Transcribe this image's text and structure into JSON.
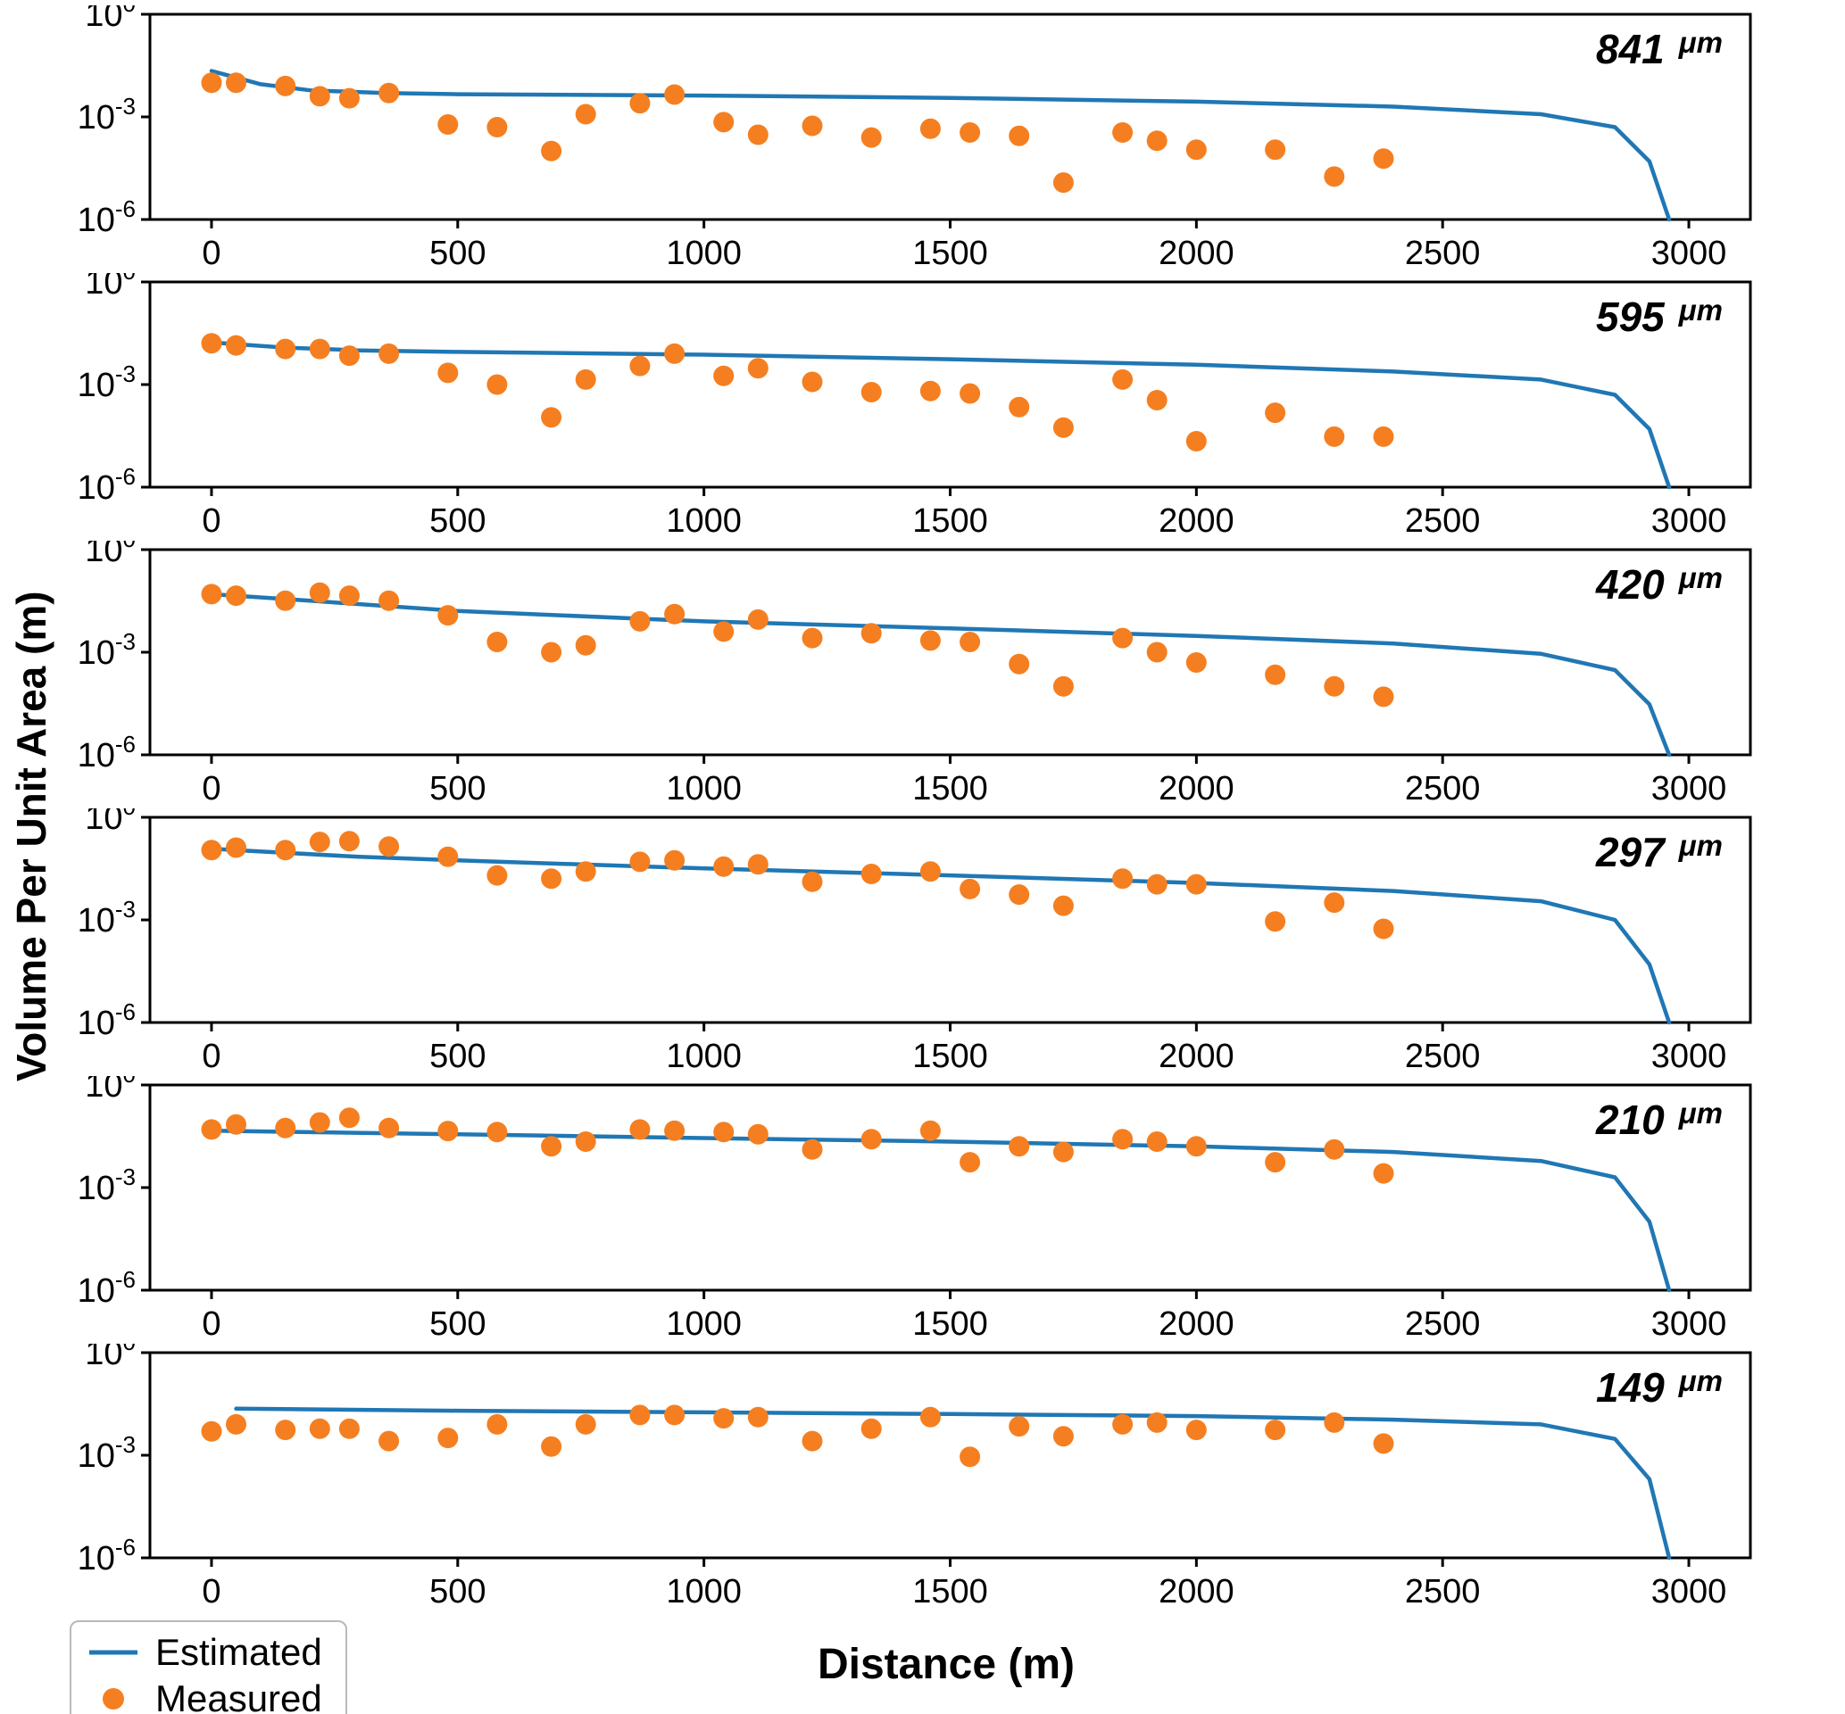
{
  "figure": {
    "ylabel": "Volume Per Unit Area (m)",
    "xlabel": "Distance (m)",
    "legend": {
      "estimated_label": "Estimated",
      "measured_label": "Measured"
    },
    "colors": {
      "estimated": "#2077b4",
      "measured": "#f57f20"
    },
    "axes": {
      "xlim": [
        -125,
        3125
      ],
      "xticks": [
        0,
        500,
        1000,
        1500,
        2000,
        2500,
        3000
      ],
      "yscale": "log",
      "y_exponent_ticks": [
        0,
        -3,
        -6
      ],
      "ylim_exponents": [
        -6,
        0
      ],
      "grid": false
    }
  },
  "chart_data": [
    {
      "type": "line+scatter",
      "label": "841",
      "unit": "μm",
      "series": [
        {
          "name": "Estimated",
          "type": "line",
          "x": [
            0,
            100,
            200,
            350,
            500,
            1000,
            1500,
            2000,
            2400,
            2700,
            2850,
            2920,
            2960
          ],
          "y": [
            0.022,
            0.009,
            0.006,
            0.005,
            0.0046,
            0.0042,
            0.0036,
            0.0028,
            0.002,
            0.0012,
            0.0005,
            5e-05,
            1e-06
          ]
        },
        {
          "name": "Measured",
          "type": "scatter",
          "x": [
            0,
            50,
            150,
            220,
            280,
            360,
            480,
            580,
            690,
            760,
            870,
            940,
            1040,
            1110,
            1220,
            1340,
            1460,
            1540,
            1640,
            1730,
            1850,
            1920,
            2000,
            2160,
            2280,
            2380
          ],
          "y": [
            0.01,
            0.01,
            0.008,
            0.004,
            0.0035,
            0.005,
            0.0006,
            0.0005,
            0.0001,
            0.0012,
            0.0025,
            0.0045,
            0.0007,
            0.0003,
            0.00055,
            0.00025,
            0.00045,
            0.00035,
            0.00028,
            1.2e-05,
            0.00035,
            0.0002,
            0.00011,
            0.00011,
            1.8e-05,
            6e-05
          ]
        }
      ]
    },
    {
      "type": "line+scatter",
      "label": "595",
      "unit": "μm",
      "series": [
        {
          "name": "Estimated",
          "type": "line",
          "x": [
            0,
            150,
            300,
            500,
            1000,
            1500,
            2000,
            2400,
            2700,
            2850,
            2920,
            2960
          ],
          "y": [
            0.017,
            0.012,
            0.01,
            0.009,
            0.0075,
            0.0055,
            0.0038,
            0.0024,
            0.0014,
            0.0005,
            5e-05,
            1e-06
          ]
        },
        {
          "name": "Measured",
          "type": "scatter",
          "x": [
            0,
            50,
            150,
            220,
            280,
            360,
            480,
            580,
            690,
            760,
            870,
            940,
            1040,
            1110,
            1220,
            1340,
            1460,
            1540,
            1640,
            1730,
            1850,
            1920,
            2000,
            2160,
            2280,
            2380
          ],
          "y": [
            0.016,
            0.014,
            0.011,
            0.011,
            0.007,
            0.008,
            0.0022,
            0.001,
            0.00011,
            0.0014,
            0.0035,
            0.008,
            0.0018,
            0.003,
            0.0012,
            0.0006,
            0.00065,
            0.00055,
            0.00022,
            5.5e-05,
            0.0014,
            0.00035,
            2.2e-05,
            0.00015,
            3e-05,
            3e-05
          ]
        }
      ]
    },
    {
      "type": "line+scatter",
      "label": "420",
      "unit": "μm",
      "series": [
        {
          "name": "Estimated",
          "type": "line",
          "x": [
            0,
            200,
            500,
            1000,
            1500,
            2000,
            2400,
            2700,
            2850,
            2920,
            2960
          ],
          "y": [
            0.05,
            0.032,
            0.016,
            0.008,
            0.005,
            0.003,
            0.0018,
            0.0009,
            0.0003,
            3e-05,
            1e-06
          ]
        },
        {
          "name": "Measured",
          "type": "scatter",
          "x": [
            0,
            50,
            150,
            220,
            280,
            360,
            480,
            580,
            690,
            760,
            870,
            940,
            1040,
            1110,
            1220,
            1340,
            1460,
            1540,
            1640,
            1730,
            1850,
            1920,
            2000,
            2160,
            2280,
            2380
          ],
          "y": [
            0.05,
            0.045,
            0.032,
            0.055,
            0.045,
            0.032,
            0.012,
            0.002,
            0.001,
            0.0016,
            0.008,
            0.013,
            0.004,
            0.009,
            0.0026,
            0.0036,
            0.0022,
            0.002,
            0.00045,
            0.0001,
            0.0026,
            0.001,
            0.0005,
            0.00022,
            0.0001,
            5e-05
          ]
        }
      ]
    },
    {
      "type": "line+scatter",
      "label": "297",
      "unit": "μm",
      "series": [
        {
          "name": "Estimated",
          "type": "line",
          "x": [
            0,
            300,
            500,
            1000,
            1500,
            2000,
            2400,
            2700,
            2850,
            2920,
            2960
          ],
          "y": [
            0.12,
            0.07,
            0.055,
            0.032,
            0.02,
            0.012,
            0.007,
            0.0035,
            0.001,
            5e-05,
            1e-06
          ]
        },
        {
          "name": "Measured",
          "type": "scatter",
          "x": [
            0,
            50,
            150,
            220,
            280,
            360,
            480,
            580,
            690,
            760,
            870,
            940,
            1040,
            1110,
            1220,
            1340,
            1460,
            1540,
            1640,
            1730,
            1850,
            1920,
            2000,
            2160,
            2280,
            2380
          ],
          "y": [
            0.11,
            0.13,
            0.11,
            0.19,
            0.2,
            0.14,
            0.07,
            0.02,
            0.016,
            0.026,
            0.05,
            0.055,
            0.036,
            0.042,
            0.013,
            0.022,
            0.026,
            0.008,
            0.0055,
            0.0026,
            0.016,
            0.011,
            0.011,
            0.0009,
            0.0032,
            0.00055
          ]
        }
      ]
    },
    {
      "type": "line+scatter",
      "label": "210",
      "unit": "μm",
      "series": [
        {
          "name": "Estimated",
          "type": "line",
          "x": [
            0,
            500,
            1000,
            1500,
            2000,
            2400,
            2700,
            2850,
            2920,
            2960
          ],
          "y": [
            0.046,
            0.036,
            0.028,
            0.022,
            0.016,
            0.011,
            0.006,
            0.002,
            0.0001,
            1e-06
          ]
        },
        {
          "name": "Measured",
          "type": "scatter",
          "x": [
            0,
            50,
            150,
            220,
            280,
            360,
            480,
            580,
            690,
            760,
            870,
            940,
            1040,
            1110,
            1220,
            1340,
            1460,
            1540,
            1640,
            1730,
            1850,
            1920,
            2000,
            2160,
            2280,
            2380
          ],
          "y": [
            0.05,
            0.07,
            0.055,
            0.08,
            0.11,
            0.055,
            0.045,
            0.042,
            0.016,
            0.022,
            0.05,
            0.046,
            0.042,
            0.036,
            0.013,
            0.026,
            0.046,
            0.0055,
            0.016,
            0.011,
            0.026,
            0.022,
            0.016,
            0.0055,
            0.013,
            0.0026
          ]
        }
      ]
    },
    {
      "type": "line+scatter",
      "label": "149",
      "unit": "μm",
      "series": [
        {
          "name": "Estimated",
          "type": "line",
          "x": [
            50,
            500,
            1000,
            1500,
            2000,
            2400,
            2700,
            2850,
            2920,
            2960
          ],
          "y": [
            0.023,
            0.02,
            0.018,
            0.016,
            0.014,
            0.011,
            0.008,
            0.003,
            0.0002,
            1e-06
          ]
        },
        {
          "name": "Measured",
          "type": "scatter",
          "x": [
            0,
            50,
            150,
            220,
            280,
            360,
            480,
            580,
            690,
            760,
            870,
            940,
            1040,
            1110,
            1220,
            1340,
            1460,
            1540,
            1640,
            1730,
            1850,
            1920,
            2000,
            2160,
            2280,
            2380
          ],
          "y": [
            0.005,
            0.008,
            0.0055,
            0.006,
            0.006,
            0.0026,
            0.0032,
            0.008,
            0.0018,
            0.008,
            0.015,
            0.015,
            0.012,
            0.013,
            0.0026,
            0.006,
            0.013,
            0.0009,
            0.007,
            0.0036,
            0.008,
            0.009,
            0.0055,
            0.0055,
            0.009,
            0.0022
          ]
        }
      ]
    }
  ]
}
